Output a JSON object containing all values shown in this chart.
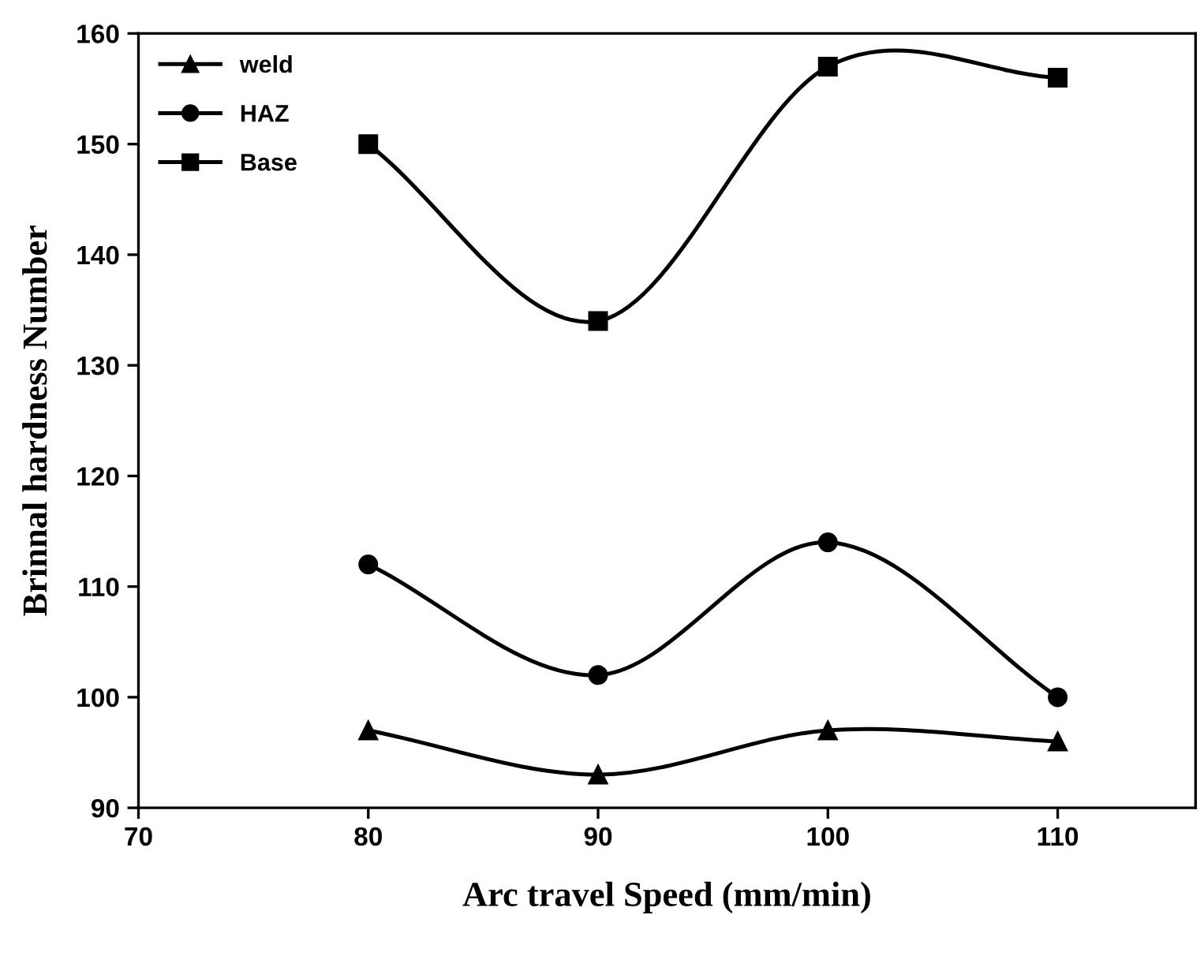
{
  "chart_data": {
    "type": "line",
    "xlabel": "Arc travel Speed (mm/min)",
    "ylabel": "Brinnal hardness Number",
    "x": [
      80,
      90,
      100,
      110
    ],
    "series": [
      {
        "name": "weld",
        "color": "#000000",
        "marker": "triangle",
        "values": [
          97,
          93,
          97,
          96
        ]
      },
      {
        "name": "HAZ",
        "color": "#000000",
        "marker": "circle",
        "values": [
          112,
          102,
          114,
          100
        ]
      },
      {
        "name": "Base",
        "color": "#000000",
        "marker": "square",
        "values": [
          150,
          134,
          157,
          156
        ]
      }
    ],
    "xlim": [
      70,
      116
    ],
    "xticks": [
      70,
      80,
      90,
      100,
      110
    ],
    "ylim": [
      90,
      160
    ],
    "yticks": [
      90,
      100,
      110,
      120,
      130,
      140,
      150,
      160
    ],
    "grid": false,
    "legend": "top left",
    "line_style": "solid"
  }
}
